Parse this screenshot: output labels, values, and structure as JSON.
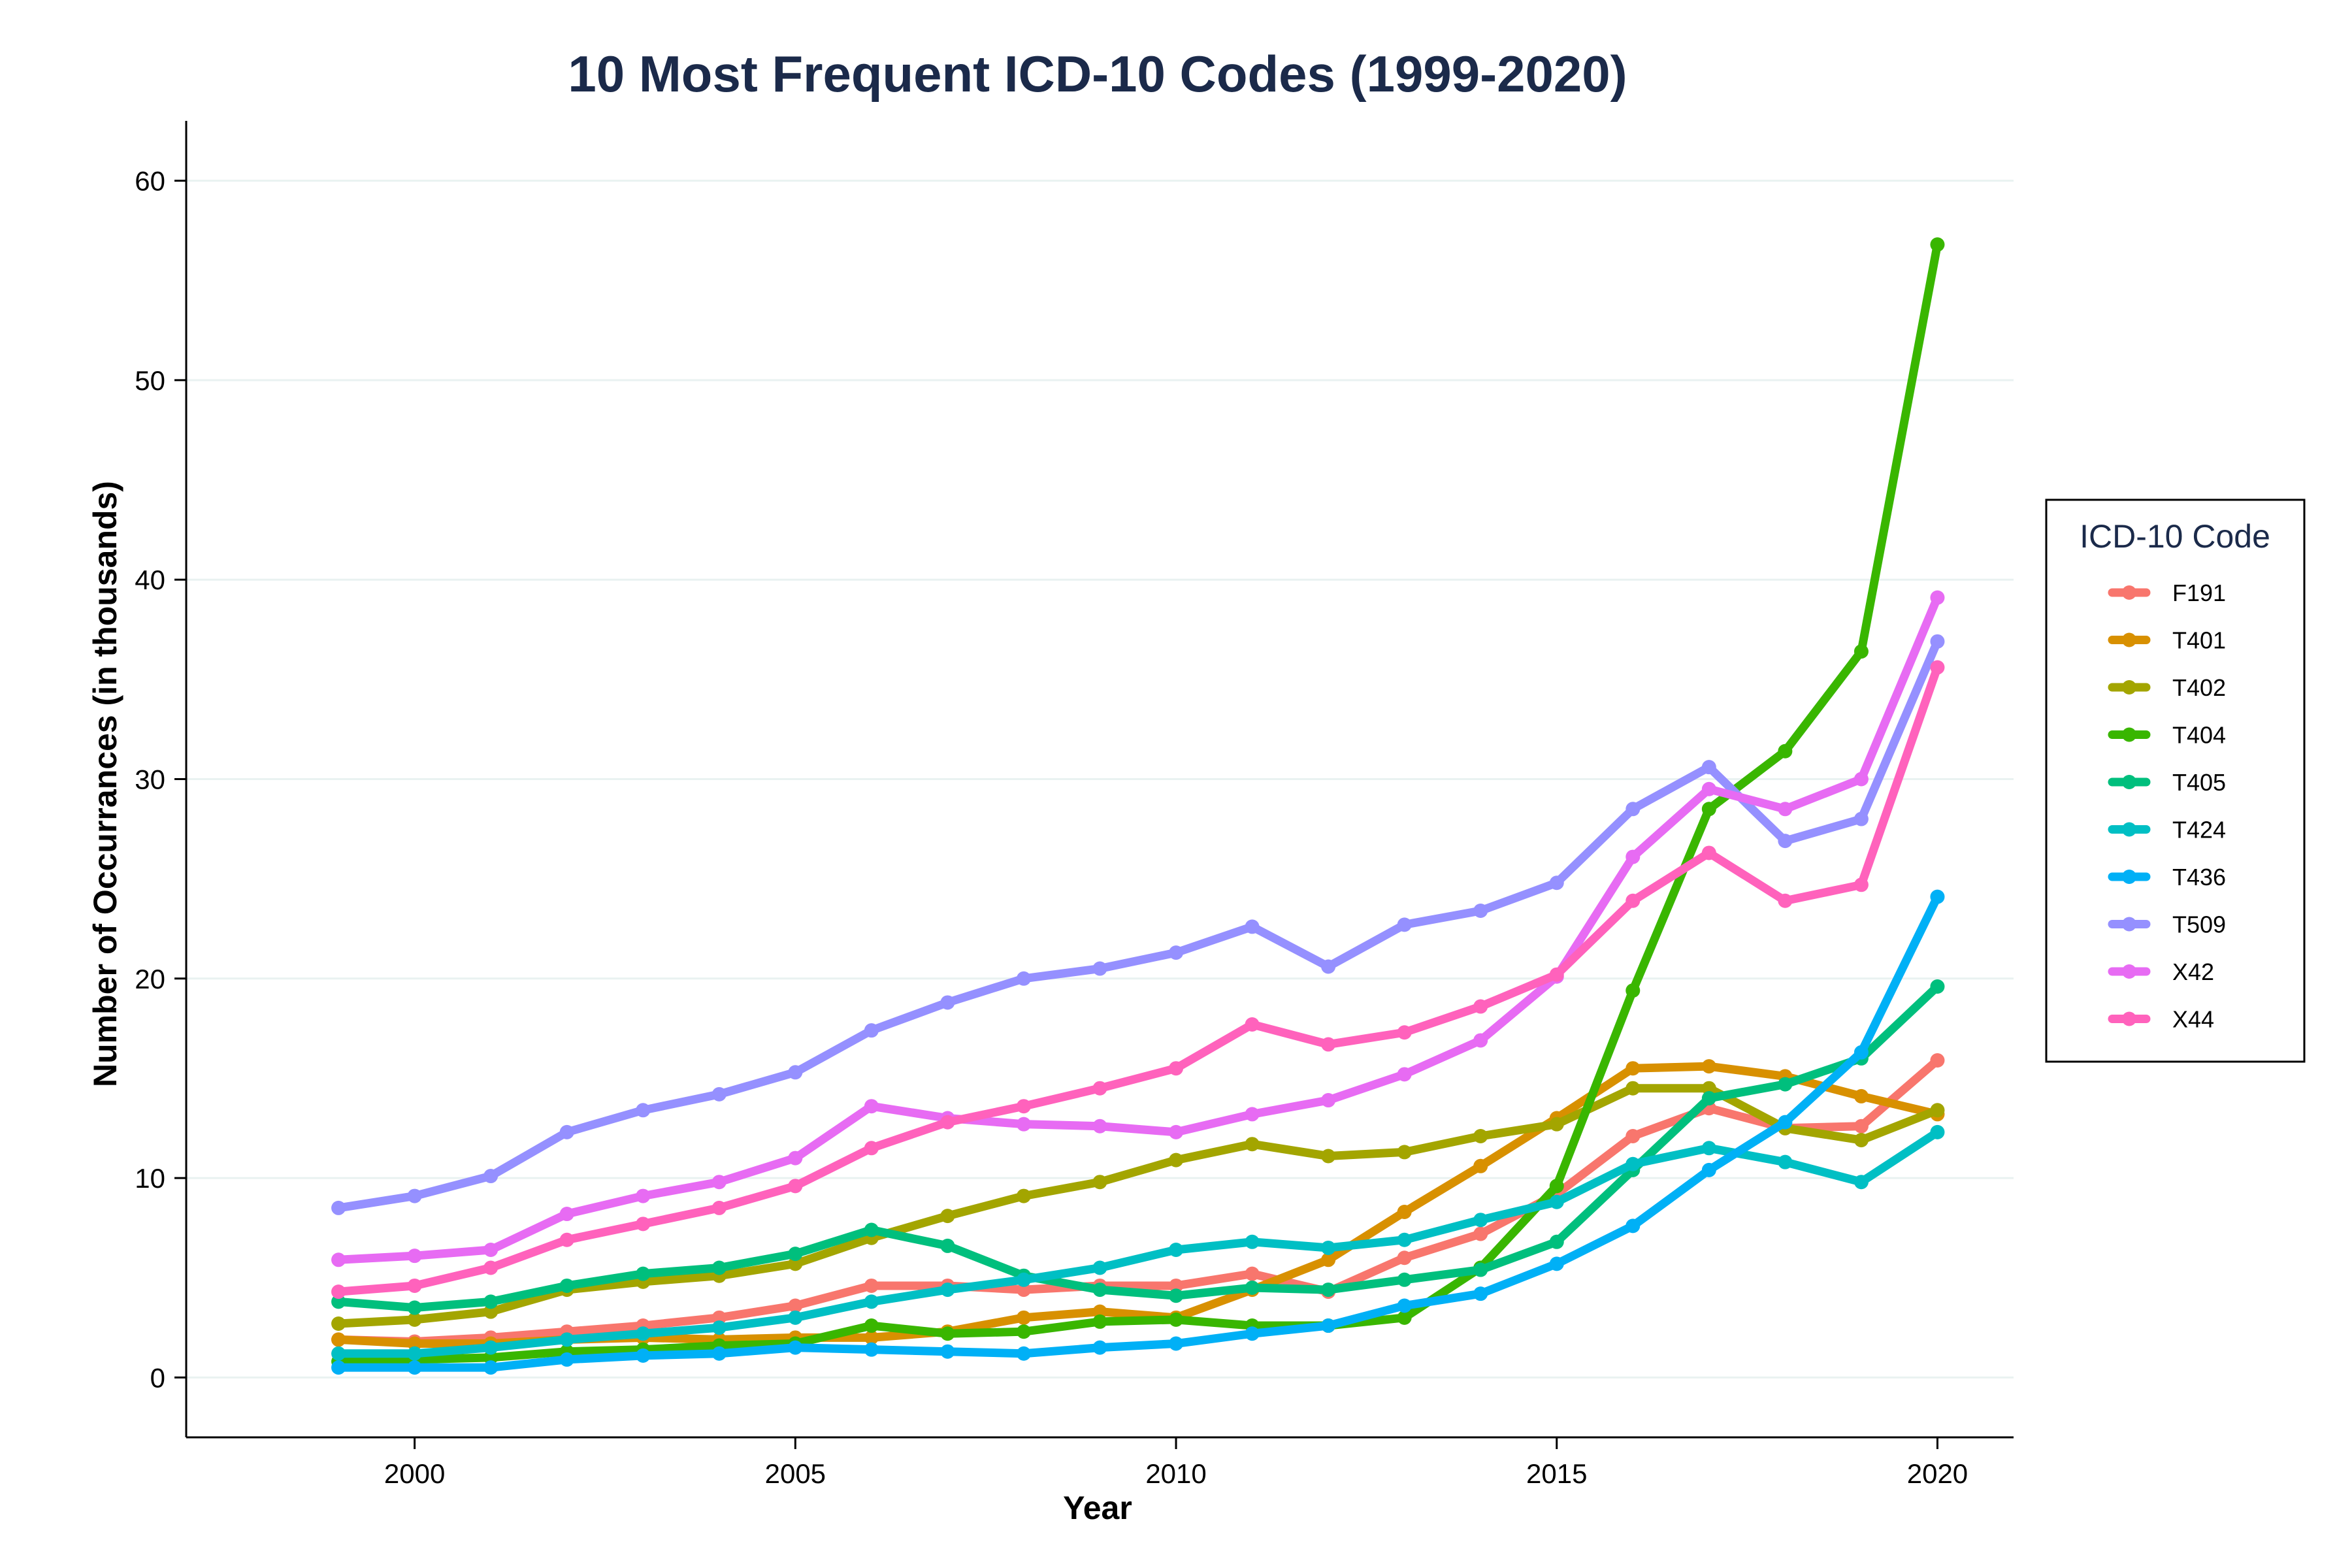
{
  "chart_data": {
    "type": "line",
    "title": "10 Most Frequent ICD-10 Codes (1999-2020)",
    "xlabel": "Year",
    "ylabel": "Number of Occurrances (in thousands)",
    "xlim": [
      1997.0,
      2021.0
    ],
    "ylim": [
      -3,
      63
    ],
    "x_ticks": [
      2000,
      2005,
      2010,
      2015,
      2020
    ],
    "y_ticks": [
      0,
      10,
      20,
      30,
      40,
      50,
      60
    ],
    "grid": "horizontal",
    "legend_title": "ICD-10 Code",
    "legend_position": "right",
    "x": [
      1999,
      2000,
      2001,
      2002,
      2003,
      2004,
      2005,
      2006,
      2007,
      2008,
      2009,
      2010,
      2011,
      2012,
      2013,
      2014,
      2015,
      2016,
      2017,
      2018,
      2019,
      2020
    ],
    "series": [
      {
        "name": "F191",
        "color": "#F8766D",
        "values": [
          1.9,
          1.8,
          2.0,
          2.3,
          2.6,
          3.0,
          3.6,
          4.6,
          4.6,
          4.4,
          4.6,
          4.6,
          5.2,
          4.3,
          6.0,
          7.2,
          9.2,
          12.1,
          13.5,
          12.5,
          12.6,
          15.9
        ]
      },
      {
        "name": "T401",
        "color": "#D89000",
        "values": [
          1.9,
          1.7,
          1.7,
          1.9,
          2.0,
          1.9,
          2.0,
          2.0,
          2.3,
          3.0,
          3.3,
          3.0,
          4.4,
          5.9,
          8.3,
          10.6,
          13.0,
          15.5,
          15.6,
          15.1,
          14.1,
          13.2
        ]
      },
      {
        "name": "T402",
        "color": "#A3A500",
        "values": [
          2.7,
          2.9,
          3.3,
          4.4,
          4.8,
          5.1,
          5.7,
          7.0,
          8.1,
          9.1,
          9.8,
          10.9,
          11.7,
          11.1,
          11.3,
          12.1,
          12.7,
          14.5,
          14.5,
          12.5,
          11.9,
          13.4
        ]
      },
      {
        "name": "T404",
        "color": "#39B600",
        "values": [
          0.8,
          0.9,
          1.0,
          1.3,
          1.4,
          1.6,
          1.7,
          2.6,
          2.2,
          2.3,
          2.8,
          2.9,
          2.6,
          2.6,
          3.0,
          5.5,
          9.6,
          19.4,
          28.5,
          31.4,
          36.4,
          56.8
        ]
      },
      {
        "name": "T405",
        "color": "#00BF7D",
        "values": [
          3.8,
          3.5,
          3.8,
          4.6,
          5.2,
          5.5,
          6.2,
          7.4,
          6.6,
          5.1,
          4.4,
          4.1,
          4.5,
          4.4,
          4.9,
          5.4,
          6.8,
          10.4,
          14.0,
          14.7,
          16.0,
          19.6
        ]
      },
      {
        "name": "T424",
        "color": "#00BFC4",
        "values": [
          1.2,
          1.2,
          1.5,
          1.9,
          2.2,
          2.5,
          3.0,
          3.8,
          4.4,
          4.9,
          5.5,
          6.4,
          6.8,
          6.5,
          6.9,
          7.9,
          8.8,
          10.7,
          11.5,
          10.8,
          9.8,
          12.3
        ]
      },
      {
        "name": "T436",
        "color": "#00B0F6",
        "values": [
          0.5,
          0.5,
          0.5,
          0.9,
          1.1,
          1.2,
          1.5,
          1.4,
          1.3,
          1.2,
          1.5,
          1.7,
          2.2,
          2.6,
          3.6,
          4.2,
          5.7,
          7.6,
          10.4,
          12.8,
          16.3,
          24.1
        ]
      },
      {
        "name": "T509",
        "color": "#9590FF",
        "values": [
          8.5,
          9.1,
          10.1,
          12.3,
          13.4,
          14.2,
          15.3,
          17.4,
          18.8,
          20.0,
          20.5,
          21.3,
          22.6,
          20.6,
          22.7,
          23.4,
          24.8,
          28.5,
          30.6,
          26.9,
          28.0,
          36.9
        ]
      },
      {
        "name": "X42",
        "color": "#E76BF3",
        "values": [
          5.9,
          6.1,
          6.4,
          8.2,
          9.1,
          9.8,
          11.0,
          13.6,
          13.0,
          12.7,
          12.6,
          12.3,
          13.2,
          13.9,
          15.2,
          16.9,
          20.1,
          26.1,
          29.5,
          28.5,
          30.0,
          39.1
        ]
      },
      {
        "name": "X44",
        "color": "#FF62BC",
        "values": [
          4.3,
          4.6,
          5.5,
          6.9,
          7.7,
          8.5,
          9.6,
          11.5,
          12.8,
          13.6,
          14.5,
          15.5,
          17.7,
          16.7,
          17.3,
          18.6,
          20.2,
          23.9,
          26.3,
          23.9,
          24.7,
          35.6
        ]
      }
    ]
  }
}
